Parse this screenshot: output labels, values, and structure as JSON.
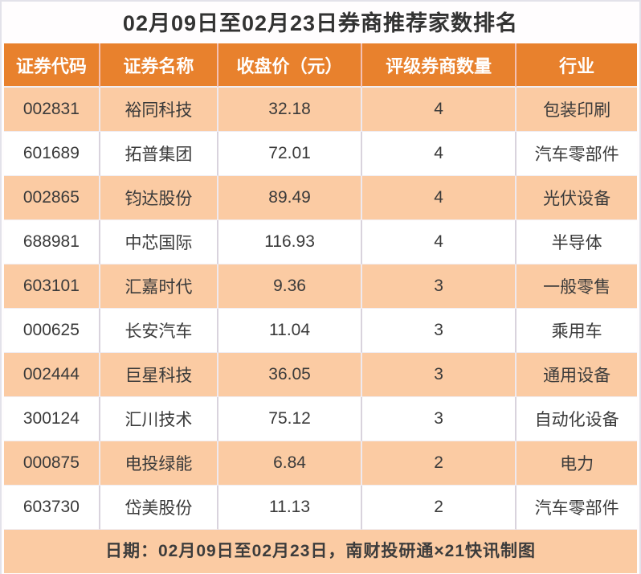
{
  "title": "02月09日至02月23日券商推荐家数排名",
  "footer_note": "日期：02月09日至02月23日，南财投研通×21快讯制图",
  "colors": {
    "header_bg": "#e8812d",
    "row_alt_bg": "#fbcba3",
    "row_bg": "#ffffff",
    "header_text": "#ffffff",
    "body_text": "#3a3a3a",
    "divider": "#d9d3dd",
    "card_border": "#e3e2ea"
  },
  "chart_data": {
    "type": "table",
    "title": "02月09日至02月23日券商推荐家数排名",
    "columns": [
      "证券代码",
      "证券名称",
      "收盘价（元）",
      "评级券商数量",
      "行业"
    ],
    "rows": [
      [
        "002831",
        "裕同科技",
        "32.18",
        "4",
        "包装印刷"
      ],
      [
        "601689",
        "拓普集团",
        "72.01",
        "4",
        "汽车零部件"
      ],
      [
        "002865",
        "钧达股份",
        "89.49",
        "4",
        "光伏设备"
      ],
      [
        "688981",
        "中芯国际",
        "116.93",
        "4",
        "半导体"
      ],
      [
        "603101",
        "汇嘉时代",
        "9.36",
        "3",
        "一般零售"
      ],
      [
        "000625",
        "长安汽车",
        "11.04",
        "3",
        "乘用车"
      ],
      [
        "002444",
        "巨星科技",
        "36.05",
        "3",
        "通用设备"
      ],
      [
        "300124",
        "汇川技术",
        "75.12",
        "3",
        "自动化设备"
      ],
      [
        "000875",
        "电投绿能",
        "6.84",
        "2",
        "电力"
      ],
      [
        "603730",
        "岱美股份",
        "11.13",
        "2",
        "汽车零部件"
      ]
    ],
    "footer": "日期：02月09日至02月23日，南财投研通×21快讯制图"
  }
}
